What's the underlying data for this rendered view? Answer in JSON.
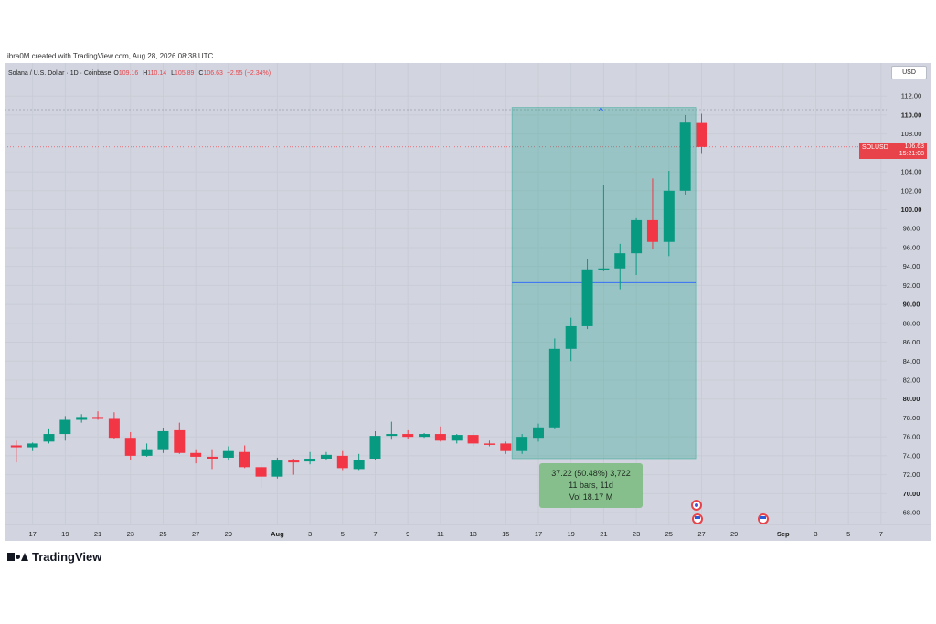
{
  "credit": "ibra0M created with TradingView.com, Aug 28, 2026 08:38 UTC",
  "legend": {
    "title": "Solana / U.S. Dollar · 1D · Coinbase",
    "open_label": "O",
    "open": "109.16",
    "high_label": "H",
    "high": "110.14",
    "low_label": "L",
    "low": "105.89",
    "close_label": "C",
    "close": "106.63",
    "change": "−2.55 (−2.34%)"
  },
  "currency_button": "USD",
  "price_tag": {
    "symbol": "SOLUSD",
    "price": "106.63",
    "countdown": "15:21:08"
  },
  "measure": {
    "line1": "37.22 (50.48%) 3,722",
    "line2": "11 bars, 11d",
    "line3": "Vol 18.17 M"
  },
  "brand": "TradingView",
  "colors": {
    "up": "#089981",
    "down": "#f23645",
    "background": "#d2d5df",
    "measure_fill": "#089981",
    "crosshair": "#2962ff"
  },
  "icons": {
    "brand": "tradingview-logo-icon",
    "events": [
      "split-event-icon",
      "us-flag-event-icon",
      "us-flag-event-icon"
    ]
  },
  "chart_data": {
    "type": "candlestick",
    "ylim": [
      66,
      114
    ],
    "y_ticks": [
      "112.00",
      "110.00",
      "108.00",
      "106.00",
      "104.00",
      "102.00",
      "100.00",
      "98.00",
      "96.00",
      "94.00",
      "92.00",
      "90.00",
      "88.00",
      "86.00",
      "84.00",
      "82.00",
      "80.00",
      "78.00",
      "76.00",
      "74.00",
      "72.00",
      "70.00",
      "68.00"
    ],
    "x_ticks": [
      {
        "label": "17",
        "day": 17
      },
      {
        "label": "19",
        "day": 19
      },
      {
        "label": "21",
        "day": 21
      },
      {
        "label": "23",
        "day": 23
      },
      {
        "label": "25",
        "day": 25
      },
      {
        "label": "27",
        "day": 27
      },
      {
        "label": "29",
        "day": 29
      },
      {
        "label": "Aug",
        "day": 32
      },
      {
        "label": "3",
        "day": 34
      },
      {
        "label": "5",
        "day": 36
      },
      {
        "label": "7",
        "day": 38
      },
      {
        "label": "9",
        "day": 40
      },
      {
        "label": "11",
        "day": 42
      },
      {
        "label": "13",
        "day": 44
      },
      {
        "label": "15",
        "day": 46
      },
      {
        "label": "17",
        "day": 48
      },
      {
        "label": "19",
        "day": 50
      },
      {
        "label": "21",
        "day": 52
      },
      {
        "label": "23",
        "day": 54
      },
      {
        "label": "25",
        "day": 56
      },
      {
        "label": "27",
        "day": 58
      },
      {
        "label": "29",
        "day": 60
      },
      {
        "label": "Sep",
        "day": 63
      },
      {
        "label": "3",
        "day": 65
      },
      {
        "label": "5",
        "day": 67
      },
      {
        "label": "7",
        "day": 69
      }
    ],
    "candles": [
      {
        "day": 16,
        "o": 75.1,
        "h": 75.6,
        "l": 73.3,
        "c": 74.9
      },
      {
        "day": 17,
        "o": 74.9,
        "h": 75.4,
        "l": 74.5,
        "c": 75.3
      },
      {
        "day": 18,
        "o": 75.5,
        "h": 76.8,
        "l": 75.3,
        "c": 76.3
      },
      {
        "day": 19,
        "o": 76.3,
        "h": 78.2,
        "l": 75.6,
        "c": 77.8
      },
      {
        "day": 20,
        "o": 77.8,
        "h": 78.4,
        "l": 77.5,
        "c": 78.1
      },
      {
        "day": 21,
        "o": 78.1,
        "h": 78.7,
        "l": 77.8,
        "c": 77.9
      },
      {
        "day": 22,
        "o": 77.9,
        "h": 78.6,
        "l": 75.8,
        "c": 75.9
      },
      {
        "day": 23,
        "o": 75.9,
        "h": 76.5,
        "l": 73.6,
        "c": 74.0
      },
      {
        "day": 24,
        "o": 74.0,
        "h": 75.3,
        "l": 73.9,
        "c": 74.6
      },
      {
        "day": 25,
        "o": 74.6,
        "h": 76.9,
        "l": 74.3,
        "c": 76.6
      },
      {
        "day": 26,
        "o": 76.7,
        "h": 77.5,
        "l": 74.2,
        "c": 74.3
      },
      {
        "day": 27,
        "o": 74.3,
        "h": 74.6,
        "l": 73.2,
        "c": 73.9
      },
      {
        "day": 28,
        "o": 73.9,
        "h": 74.6,
        "l": 72.6,
        "c": 73.7
      },
      {
        "day": 29,
        "o": 73.8,
        "h": 75.0,
        "l": 73.5,
        "c": 74.5
      },
      {
        "day": 30,
        "o": 74.4,
        "h": 75.1,
        "l": 72.7,
        "c": 72.8
      },
      {
        "day": 31,
        "o": 72.8,
        "h": 73.2,
        "l": 70.6,
        "c": 71.8
      },
      {
        "day": 32,
        "o": 71.8,
        "h": 73.8,
        "l": 71.6,
        "c": 73.5
      },
      {
        "day": 33,
        "o": 73.5,
        "h": 73.7,
        "l": 72.0,
        "c": 73.3
      },
      {
        "day": 34,
        "o": 73.4,
        "h": 74.4,
        "l": 73.1,
        "c": 73.7
      },
      {
        "day": 35,
        "o": 73.7,
        "h": 74.4,
        "l": 73.5,
        "c": 74.1
      },
      {
        "day": 36,
        "o": 74.0,
        "h": 74.5,
        "l": 72.5,
        "c": 72.7
      },
      {
        "day": 37,
        "o": 72.6,
        "h": 74.2,
        "l": 72.5,
        "c": 73.6
      },
      {
        "day": 38,
        "o": 73.7,
        "h": 76.6,
        "l": 73.5,
        "c": 76.1
      },
      {
        "day": 39,
        "o": 76.1,
        "h": 77.6,
        "l": 75.7,
        "c": 76.3
      },
      {
        "day": 40,
        "o": 76.3,
        "h": 76.7,
        "l": 75.8,
        "c": 76.0
      },
      {
        "day": 41,
        "o": 76.0,
        "h": 76.4,
        "l": 75.9,
        "c": 76.3
      },
      {
        "day": 42,
        "o": 76.3,
        "h": 77.1,
        "l": 75.5,
        "c": 75.6
      },
      {
        "day": 43,
        "o": 75.6,
        "h": 76.3,
        "l": 75.3,
        "c": 76.2
      },
      {
        "day": 44,
        "o": 76.2,
        "h": 76.5,
        "l": 75.0,
        "c": 75.3
      },
      {
        "day": 45,
        "o": 75.3,
        "h": 75.6,
        "l": 75.0,
        "c": 75.2
      },
      {
        "day": 46,
        "o": 75.3,
        "h": 75.5,
        "l": 74.2,
        "c": 74.5
      },
      {
        "day": 47,
        "o": 74.5,
        "h": 76.3,
        "l": 74.2,
        "c": 76.0
      },
      {
        "day": 48,
        "o": 75.9,
        "h": 77.4,
        "l": 75.5,
        "c": 77.0
      },
      {
        "day": 49,
        "o": 77.0,
        "h": 86.4,
        "l": 76.8,
        "c": 85.3
      },
      {
        "day": 50,
        "o": 85.3,
        "h": 88.6,
        "l": 84.0,
        "c": 87.7
      },
      {
        "day": 51,
        "o": 87.7,
        "h": 94.8,
        "l": 87.4,
        "c": 93.7
      },
      {
        "day": 52,
        "o": 93.7,
        "h": 102.6,
        "l": 93.5,
        "c": 93.8
      },
      {
        "day": 53,
        "o": 93.8,
        "h": 96.4,
        "l": 91.6,
        "c": 95.4
      },
      {
        "day": 54,
        "o": 95.4,
        "h": 99.1,
        "l": 93.1,
        "c": 98.9
      },
      {
        "day": 55,
        "o": 98.9,
        "h": 103.3,
        "l": 95.8,
        "c": 96.6
      },
      {
        "day": 56,
        "o": 96.6,
        "h": 104.1,
        "l": 95.1,
        "c": 102.0
      },
      {
        "day": 57,
        "o": 102.0,
        "h": 110.0,
        "l": 101.6,
        "c": 109.2
      },
      {
        "day": 58,
        "o": 109.16,
        "h": 110.14,
        "l": 105.89,
        "c": 106.63
      }
    ],
    "measure_range": {
      "start_day": 47,
      "end_day": 57,
      "low": 73.7,
      "high": 110.8,
      "mid_day": 52,
      "mid_price": 92.3
    }
  }
}
